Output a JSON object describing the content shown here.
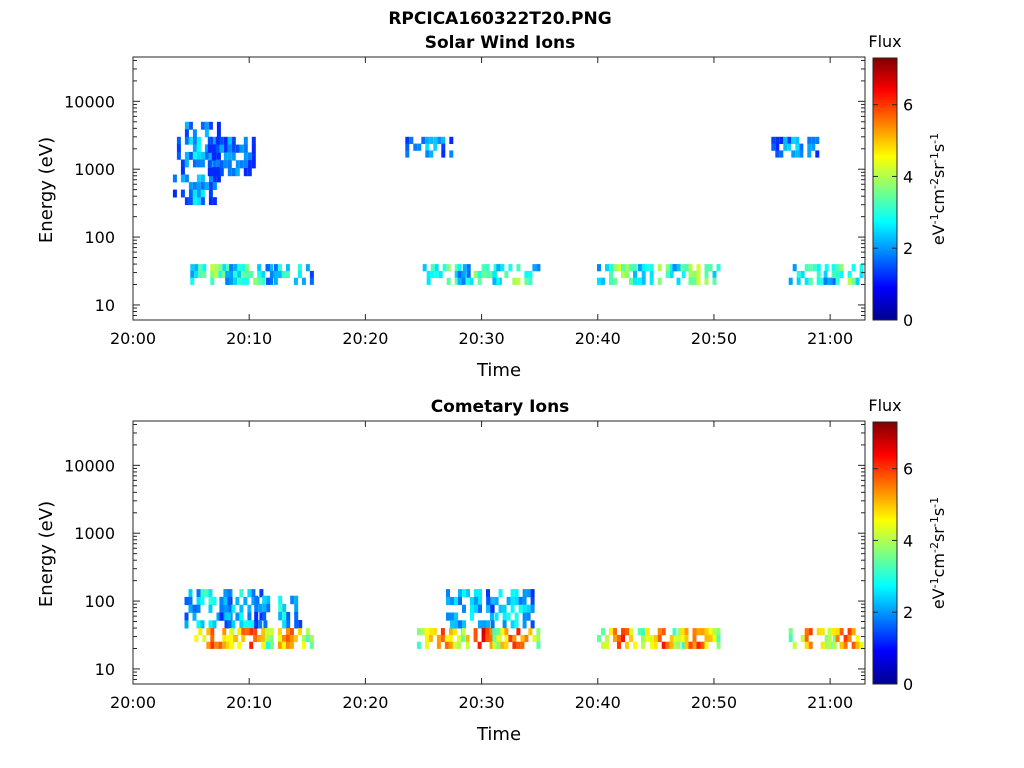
{
  "figure_title": "RPCICA160322T20.PNG",
  "chart_data": [
    {
      "type": "heatmap",
      "title": "Solar Wind Ions",
      "xlabel": "Time",
      "ylabel": "Energy (eV)",
      "x_ticks": [
        "20:00",
        "20:10",
        "20:20",
        "20:30",
        "20:40",
        "20:50",
        "21:00"
      ],
      "y_ticks": [
        "10",
        "100",
        "1000",
        "10000"
      ],
      "xlim": [
        "20:00",
        "21:03"
      ],
      "ylim": [
        6,
        45000
      ],
      "y_scale": "log",
      "colorbar": {
        "title": "Flux",
        "label_parts": [
          "eV",
          "-1",
          "cm",
          "-2",
          "sr",
          "-1",
          "s",
          "-1"
        ],
        "ticks": [
          "0",
          "2",
          "4",
          "6"
        ],
        "range": [
          0,
          7.3
        ],
        "colormap": "jet"
      },
      "blocks": [
        {
          "t": "20:05.5",
          "e": [
            300,
            5000
          ],
          "flux": 2.3
        },
        {
          "t": "20:07.0",
          "e": [
            20,
            40
          ],
          "flux": 3.8
        },
        {
          "t": "20:08.5",
          "e": [
            800,
            3000
          ],
          "flux": 2.0
        },
        {
          "t": "20:10.0",
          "e": [
            20,
            40
          ],
          "flux": 3.5
        },
        {
          "t": "20:13.5",
          "e": [
            20,
            40
          ],
          "flux": 3.0
        },
        {
          "t": "20:25.5",
          "e": [
            1500,
            3000
          ],
          "flux": 2.4
        },
        {
          "t": "20:27.0",
          "e": [
            20,
            40
          ],
          "flux": 3.6
        },
        {
          "t": "20:30.0",
          "e": [
            20,
            40
          ],
          "flux": 3.6
        },
        {
          "t": "20:33.0",
          "e": [
            20,
            40
          ],
          "flux": 3.8
        },
        {
          "t": "20:42.0",
          "e": [
            20,
            40
          ],
          "flux": 3.8
        },
        {
          "t": "20:45.5",
          "e": [
            20,
            40
          ],
          "flux": 3.6
        },
        {
          "t": "20:48.5",
          "e": [
            20,
            40
          ],
          "flux": 4.2
        },
        {
          "t": "20:57.0",
          "e": [
            1500,
            3000
          ],
          "flux": 2.2
        },
        {
          "t": "20:58.5",
          "e": [
            20,
            40
          ],
          "flux": 3.5
        },
        {
          "t": "21:01.5",
          "e": [
            20,
            40
          ],
          "flux": 3.6
        }
      ]
    },
    {
      "type": "heatmap",
      "title": "Cometary Ions",
      "xlabel": "Time",
      "ylabel": "Energy (eV)",
      "x_ticks": [
        "20:00",
        "20:10",
        "20:20",
        "20:30",
        "20:40",
        "20:50",
        "21:00"
      ],
      "y_ticks": [
        "10",
        "100",
        "1000",
        "10000"
      ],
      "xlim": [
        "20:00",
        "21:03"
      ],
      "ylim": [
        6,
        45000
      ],
      "y_scale": "log",
      "colorbar": {
        "title": "Flux",
        "label_parts": [
          "eV",
          "-1",
          "cm",
          "-2",
          "sr",
          "-1",
          "s",
          "-1"
        ],
        "ticks": [
          "0",
          "2",
          "4",
          "6"
        ],
        "range": [
          0,
          7.3
        ],
        "colormap": "jet"
      },
      "blocks": [
        {
          "t": "20:06.5",
          "e": [
            40,
            150
          ],
          "flux": 2.8
        },
        {
          "t": "20:07.0",
          "e": [
            20,
            40
          ],
          "flux": 6.0
        },
        {
          "t": "20:09.5",
          "e": [
            40,
            150
          ],
          "flux": 2.6
        },
        {
          "t": "20:10.0",
          "e": [
            20,
            40
          ],
          "flux": 6.2
        },
        {
          "t": "20:12.5",
          "e": [
            40,
            120
          ],
          "flux": 2.6
        },
        {
          "t": "20:13.5",
          "e": [
            20,
            40
          ],
          "flux": 5.8
        },
        {
          "t": "20:26.5",
          "e": [
            20,
            40
          ],
          "flux": 5.8
        },
        {
          "t": "20:29.0",
          "e": [
            40,
            150
          ],
          "flux": 2.8
        },
        {
          "t": "20:30.0",
          "e": [
            20,
            40
          ],
          "flux": 6.4
        },
        {
          "t": "20:32.5",
          "e": [
            40,
            150
          ],
          "flux": 2.8
        },
        {
          "t": "20:33.0",
          "e": [
            20,
            40
          ],
          "flux": 6.1
        },
        {
          "t": "20:42.0",
          "e": [
            20,
            40
          ],
          "flux": 6.0
        },
        {
          "t": "20:45.5",
          "e": [
            20,
            40
          ],
          "flux": 6.0
        },
        {
          "t": "20:48.5",
          "e": [
            20,
            40
          ],
          "flux": 6.0
        },
        {
          "t": "20:58.5",
          "e": [
            20,
            40
          ],
          "flux": 5.8
        },
        {
          "t": "21:01.5",
          "e": [
            20,
            40
          ],
          "flux": 6.2
        }
      ]
    }
  ]
}
